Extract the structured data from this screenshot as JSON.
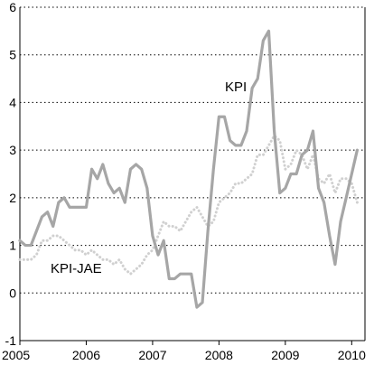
{
  "chart_data": {
    "type": "line",
    "title": "",
    "xlabel": "",
    "ylabel": "",
    "xlim": [
      2005,
      2010.2
    ],
    "ylim": [
      -1,
      6
    ],
    "y_ticks": [
      "6",
      "5",
      "4",
      "3",
      "2",
      "1",
      "0",
      "-1"
    ],
    "x_ticks": [
      "2005",
      "2006",
      "2007",
      "2008",
      "2009",
      "2010"
    ],
    "grid": "horizontal dotted",
    "legend": "none",
    "series": [
      {
        "name": "KPI",
        "label": "KPI",
        "color": "#a6a6a6",
        "style": "solid",
        "x": [
          2005.0,
          2005.083,
          2005.167,
          2005.25,
          2005.333,
          2005.417,
          2005.5,
          2005.583,
          2005.667,
          2005.75,
          2005.833,
          2005.917,
          2006.0,
          2006.083,
          2006.167,
          2006.25,
          2006.333,
          2006.417,
          2006.5,
          2006.583,
          2006.667,
          2006.75,
          2006.833,
          2006.917,
          2007.0,
          2007.083,
          2007.167,
          2007.25,
          2007.333,
          2007.417,
          2007.5,
          2007.583,
          2007.667,
          2007.75,
          2007.833,
          2007.917,
          2008.0,
          2008.083,
          2008.167,
          2008.25,
          2008.333,
          2008.417,
          2008.5,
          2008.583,
          2008.667,
          2008.75,
          2008.833,
          2008.917,
          2009.0,
          2009.083,
          2009.167,
          2009.25,
          2009.333,
          2009.417,
          2009.5,
          2009.583,
          2009.667,
          2009.75,
          2009.833,
          2009.917,
          2010.0,
          2010.083
        ],
        "values": [
          1.1,
          1.0,
          1.0,
          1.3,
          1.6,
          1.7,
          1.4,
          1.9,
          2.0,
          1.8,
          1.8,
          1.8,
          1.8,
          2.6,
          2.4,
          2.7,
          2.3,
          2.1,
          2.2,
          1.9,
          2.6,
          2.7,
          2.6,
          2.2,
          1.2,
          0.8,
          1.1,
          0.3,
          0.3,
          0.4,
          0.4,
          0.4,
          -0.3,
          -0.2,
          1.3,
          2.6,
          3.7,
          3.7,
          3.2,
          3.1,
          3.1,
          3.4,
          4.3,
          4.5,
          5.3,
          5.5,
          3.4,
          2.1,
          2.2,
          2.5,
          2.5,
          2.9,
          3.0,
          3.4,
          2.2,
          1.9,
          1.2,
          0.6,
          1.5,
          2.0,
          2.5,
          3.0
        ]
      },
      {
        "name": "KPI-JAE",
        "label": "KPI-JAE",
        "color": "#d0d0d0",
        "style": "dotted",
        "x": [
          2005.0,
          2005.083,
          2005.167,
          2005.25,
          2005.333,
          2005.417,
          2005.5,
          2005.583,
          2005.667,
          2005.75,
          2005.833,
          2005.917,
          2006.0,
          2006.083,
          2006.167,
          2006.25,
          2006.333,
          2006.417,
          2006.5,
          2006.583,
          2006.667,
          2006.75,
          2006.833,
          2006.917,
          2007.0,
          2007.083,
          2007.167,
          2007.25,
          2007.333,
          2007.417,
          2007.5,
          2007.583,
          2007.667,
          2007.75,
          2007.833,
          2007.917,
          2008.0,
          2008.083,
          2008.167,
          2008.25,
          2008.333,
          2008.417,
          2008.5,
          2008.583,
          2008.667,
          2008.75,
          2008.833,
          2008.917,
          2009.0,
          2009.083,
          2009.167,
          2009.25,
          2009.333,
          2009.417,
          2009.5,
          2009.583,
          2009.667,
          2009.75,
          2009.833,
          2009.917,
          2010.0,
          2010.083
        ],
        "values": [
          0.7,
          0.7,
          0.7,
          0.8,
          1.1,
          1.1,
          1.2,
          1.2,
          1.1,
          1.0,
          0.9,
          0.9,
          0.8,
          0.9,
          0.8,
          0.7,
          0.7,
          0.6,
          0.7,
          0.5,
          0.4,
          0.5,
          0.6,
          0.8,
          0.9,
          1.2,
          1.5,
          1.4,
          1.4,
          1.3,
          1.5,
          1.7,
          1.8,
          1.6,
          1.4,
          1.5,
          1.9,
          2.0,
          2.1,
          2.3,
          2.3,
          2.4,
          2.5,
          2.9,
          2.9,
          3.1,
          3.3,
          3.2,
          2.6,
          2.7,
          3.0,
          2.9,
          2.6,
          2.9,
          2.4,
          2.3,
          2.5,
          2.1,
          2.4,
          2.4,
          2.3,
          1.9
        ]
      }
    ]
  }
}
